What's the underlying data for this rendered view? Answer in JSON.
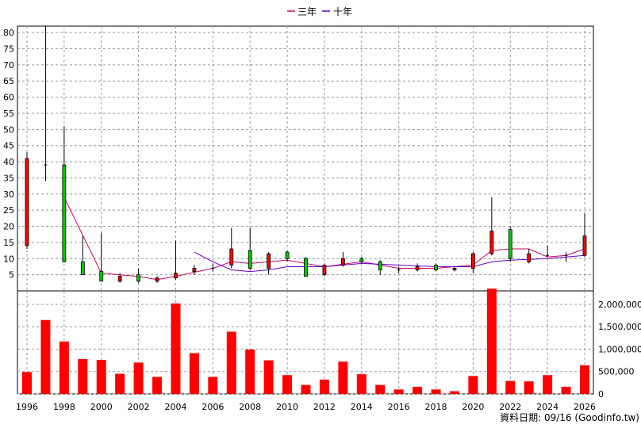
{
  "legend": [
    {
      "label": "三年",
      "color": "#cc0066"
    },
    {
      "label": "十年",
      "color": "#6600cc"
    }
  ],
  "footer": "資料日期: 09/16 (Goodinfo.tw)",
  "chart_data": [
    {
      "type": "candlestick",
      "x_ticks": [
        "1996",
        "1998",
        "2000",
        "2002",
        "2004",
        "2006",
        "2008",
        "2010",
        "2012",
        "2014",
        "2016",
        "2018",
        "2020",
        "2022",
        "2024",
        "2026"
      ],
      "ylim": [
        0,
        82
      ],
      "y_ticks": [
        5,
        10,
        15,
        20,
        25,
        30,
        35,
        40,
        45,
        50,
        55,
        60,
        65,
        70,
        75,
        80
      ],
      "grid": true,
      "up_color": "#ff0000",
      "down_color": "#00cc00",
      "candles": [
        {
          "year": 1996,
          "open": 14,
          "close": 41,
          "high": 43,
          "low": 13
        },
        {
          "year": 1997,
          "open": 39,
          "close": 39,
          "high": 82,
          "low": 34
        },
        {
          "year": 1998,
          "open": 39,
          "close": 9,
          "high": 51,
          "low": 9
        },
        {
          "year": 1999,
          "open": 9,
          "close": 5,
          "high": 17,
          "low": 5
        },
        {
          "year": 2000,
          "open": 6,
          "close": 3,
          "high": 18,
          "low": 3
        },
        {
          "year": 2001,
          "open": 3,
          "close": 4.5,
          "high": 5.5,
          "low": 2.5
        },
        {
          "year": 2002,
          "open": 5,
          "close": 3,
          "high": 7,
          "low": 2.5
        },
        {
          "year": 2003,
          "open": 3,
          "close": 4,
          "high": 4.5,
          "low": 2.5
        },
        {
          "year": 2004,
          "open": 4,
          "close": 5.5,
          "high": 15.5,
          "low": 3.5
        },
        {
          "year": 2005,
          "open": 6,
          "close": 7,
          "high": 8,
          "low": 5
        },
        {
          "year": 2006,
          "open": 7,
          "close": 7,
          "high": 8.5,
          "low": 6
        },
        {
          "year": 2007,
          "open": 8,
          "close": 13,
          "high": 19.5,
          "low": 7
        },
        {
          "year": 2008,
          "open": 12.5,
          "close": 7,
          "high": 19.5,
          "low": 6.5
        },
        {
          "year": 2009,
          "open": 7,
          "close": 11.5,
          "high": 12,
          "low": 5
        },
        {
          "year": 2010,
          "open": 12,
          "close": 10,
          "high": 12.5,
          "low": 9
        },
        {
          "year": 2011,
          "open": 10,
          "close": 4.5,
          "high": 10.5,
          "low": 4.5
        },
        {
          "year": 2012,
          "open": 5,
          "close": 8,
          "high": 8.5,
          "low": 4.5
        },
        {
          "year": 2013,
          "open": 8,
          "close": 10,
          "high": 12,
          "low": 7.5
        },
        {
          "year": 2014,
          "open": 10,
          "close": 9,
          "high": 10.5,
          "low": 8.5
        },
        {
          "year": 2015,
          "open": 9,
          "close": 6.5,
          "high": 9.5,
          "low": 5
        },
        {
          "year": 2016,
          "open": 6.5,
          "close": 6.5,
          "high": 7.5,
          "low": 5.5
        },
        {
          "year": 2017,
          "open": 6.5,
          "close": 7.5,
          "high": 8.5,
          "low": 6
        },
        {
          "year": 2018,
          "open": 8,
          "close": 6.5,
          "high": 8.5,
          "low": 6
        },
        {
          "year": 2019,
          "open": 6.5,
          "close": 7,
          "high": 7.5,
          "low": 6
        },
        {
          "year": 2020,
          "open": 7,
          "close": 11.5,
          "high": 12,
          "low": 5.5
        },
        {
          "year": 2021,
          "open": 11.5,
          "close": 18.5,
          "high": 29,
          "low": 11
        },
        {
          "year": 2022,
          "open": 19,
          "close": 10,
          "high": 20,
          "low": 9
        },
        {
          "year": 2023,
          "open": 9,
          "close": 11.5,
          "high": 13,
          "low": 8.5
        },
        {
          "year": 2024,
          "open": 11,
          "close": 11,
          "high": 14,
          "low": 10.5
        },
        {
          "year": 2025,
          "open": 11,
          "close": 11,
          "high": 12,
          "low": 9
        },
        {
          "year": 2026,
          "open": 11,
          "close": 17,
          "high": 24,
          "low": 10.5
        }
      ],
      "series": [
        {
          "name": "三年",
          "color": "#cc0066",
          "points": [
            [
              1998,
              29
            ],
            [
              2000,
              5.5
            ],
            [
              2002,
              4.5
            ],
            [
              2003,
              3.5
            ],
            [
              2004,
              4.5
            ],
            [
              2006,
              7
            ],
            [
              2007,
              9
            ],
            [
              2008,
              8.5
            ],
            [
              2010,
              9.5
            ],
            [
              2012,
              7.5
            ],
            [
              2014,
              9
            ],
            [
              2016,
              7
            ],
            [
              2018,
              7
            ],
            [
              2020,
              8
            ],
            [
              2021,
              12.5
            ],
            [
              2022,
              13
            ],
            [
              2023,
              13
            ],
            [
              2024,
              10.5
            ],
            [
              2025,
              11
            ],
            [
              2026,
              13
            ]
          ]
        },
        {
          "name": "十年",
          "color": "#6600cc",
          "points": [
            [
              2005,
              12
            ],
            [
              2006,
              9
            ],
            [
              2007,
              6.5
            ],
            [
              2008,
              6
            ],
            [
              2009,
              6.5
            ],
            [
              2010,
              7.5
            ],
            [
              2012,
              7.5
            ],
            [
              2014,
              8.5
            ],
            [
              2016,
              8
            ],
            [
              2018,
              7.5
            ],
            [
              2020,
              7.5
            ],
            [
              2021,
              9
            ],
            [
              2022,
              9.5
            ],
            [
              2024,
              10
            ],
            [
              2025,
              10.5
            ],
            [
              2026,
              11
            ]
          ]
        }
      ]
    },
    {
      "type": "bar",
      "color": "#ff0000",
      "ylim": [
        0,
        2300000
      ],
      "y_ticks": [
        0,
        500000,
        1000000,
        1500000,
        2000000
      ],
      "y_tick_labels": [
        "0",
        "500,000",
        "1,000,000",
        "1,500,000",
        "2,000,000"
      ],
      "grid": true,
      "bars": [
        {
          "year": 1996,
          "value": 490000
        },
        {
          "year": 1997,
          "value": 1650000
        },
        {
          "year": 1998,
          "value": 1170000
        },
        {
          "year": 1999,
          "value": 780000
        },
        {
          "year": 2000,
          "value": 760000
        },
        {
          "year": 2001,
          "value": 450000
        },
        {
          "year": 2002,
          "value": 700000
        },
        {
          "year": 2003,
          "value": 380000
        },
        {
          "year": 2004,
          "value": 2020000
        },
        {
          "year": 2005,
          "value": 910000
        },
        {
          "year": 2006,
          "value": 380000
        },
        {
          "year": 2007,
          "value": 1390000
        },
        {
          "year": 2008,
          "value": 990000
        },
        {
          "year": 2009,
          "value": 750000
        },
        {
          "year": 2010,
          "value": 420000
        },
        {
          "year": 2011,
          "value": 200000
        },
        {
          "year": 2012,
          "value": 320000
        },
        {
          "year": 2013,
          "value": 720000
        },
        {
          "year": 2014,
          "value": 440000
        },
        {
          "year": 2015,
          "value": 200000
        },
        {
          "year": 2016,
          "value": 100000
        },
        {
          "year": 2017,
          "value": 160000
        },
        {
          "year": 2018,
          "value": 100000
        },
        {
          "year": 2019,
          "value": 60000
        },
        {
          "year": 2020,
          "value": 400000
        },
        {
          "year": 2021,
          "value": 2350000
        },
        {
          "year": 2022,
          "value": 290000
        },
        {
          "year": 2023,
          "value": 280000
        },
        {
          "year": 2024,
          "value": 420000
        },
        {
          "year": 2025,
          "value": 160000
        },
        {
          "year": 2026,
          "value": 640000
        }
      ]
    }
  ]
}
